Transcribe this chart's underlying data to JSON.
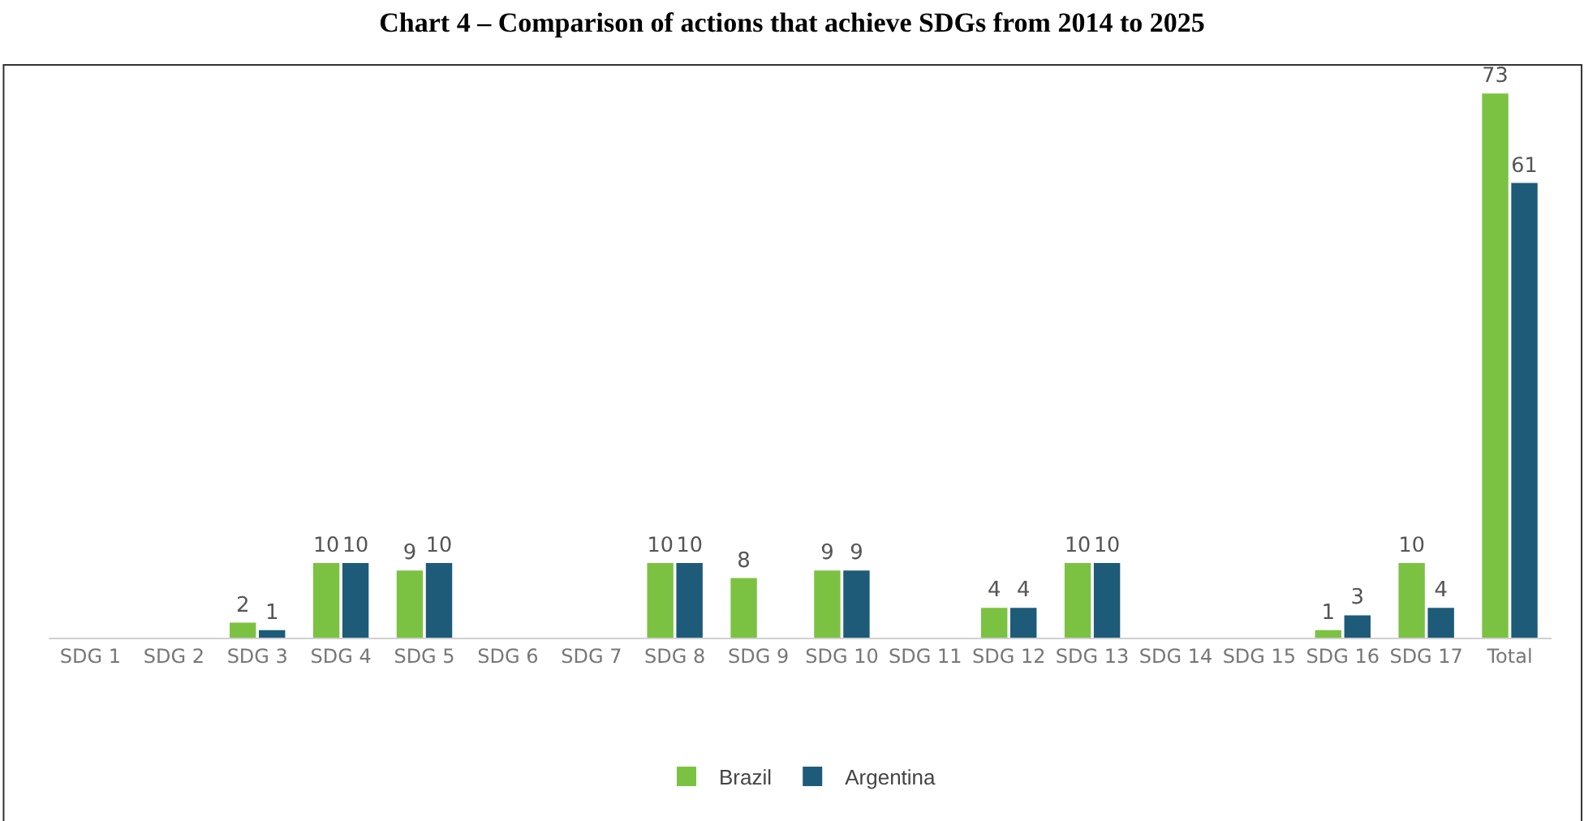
{
  "chart_data": {
    "type": "bar",
    "title": "Chart 4 – Comparison of actions that achieve SDGs from 2014 to 2025",
    "categories": [
      "SDG 1",
      "SDG 2",
      "SDG 3",
      "SDG 4",
      "SDG 5",
      "SDG 6",
      "SDG 7",
      "SDG 8",
      "SDG 9",
      "SDG 10",
      "SDG 11",
      "SDG 12",
      "SDG 13",
      "SDG 14",
      "SDG 15",
      "SDG 16",
      "SDG 17",
      "Total"
    ],
    "series": [
      {
        "name": "Brazil",
        "color": "#7cc242",
        "values": [
          0,
          0,
          2,
          10,
          9,
          0,
          0,
          10,
          8,
          9,
          0,
          4,
          10,
          0,
          0,
          1,
          10,
          73
        ],
        "value_labels": [
          null,
          null,
          "2",
          "10",
          "9",
          null,
          null,
          "10",
          "8",
          "9",
          null,
          "4",
          "10",
          null,
          null,
          "1",
          "10",
          "73"
        ]
      },
      {
        "name": "Argentina",
        "color": "#1d5b79",
        "values": [
          0,
          0,
          1,
          10,
          10,
          0,
          0,
          10,
          0,
          9,
          0,
          4,
          10,
          0,
          0,
          3,
          4,
          61
        ],
        "value_labels": [
          null,
          null,
          "1",
          "10",
          "10",
          null,
          null,
          "10",
          null,
          "9",
          null,
          "4",
          "10",
          null,
          null,
          "3",
          "4",
          "61"
        ]
      }
    ],
    "legend": "bottom"
  }
}
